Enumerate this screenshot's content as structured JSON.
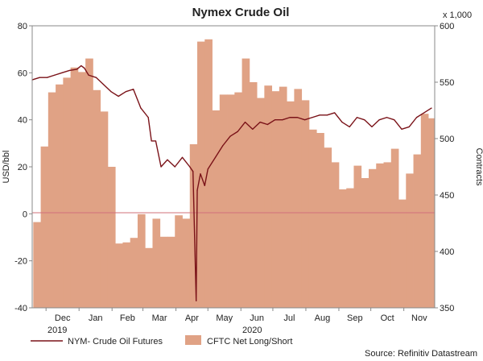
{
  "chart_data": {
    "type": "line+bar",
    "title": "Nymex Crude Oil",
    "ylabel_left": "USD/bbl",
    "ylabel_right": "Contracts",
    "right_multiplier": "x 1,000",
    "source": "Source: Refinitiv Datastream",
    "ylim_left": [
      -40,
      80
    ],
    "ylim_right": [
      350,
      600
    ],
    "yticks_left": [
      "-40",
      "-20",
      "0",
      "20",
      "40",
      "60",
      "80"
    ],
    "yticks_right": [
      "350",
      "400",
      "450",
      "500",
      "550",
      "600"
    ],
    "x_range": [
      "2019-11-18",
      "2020-11-30"
    ],
    "months": [
      {
        "label": "Dec",
        "date": "2019-12-01"
      },
      {
        "label": "Jan",
        "date": "2020-01-01"
      },
      {
        "label": "Feb",
        "date": "2020-02-01"
      },
      {
        "label": "Mar",
        "date": "2020-03-01"
      },
      {
        "label": "Apr",
        "date": "2020-04-01"
      },
      {
        "label": "May",
        "date": "2020-05-01"
      },
      {
        "label": "Jun",
        "date": "2020-06-01"
      },
      {
        "label": "Jul",
        "date": "2020-07-01"
      },
      {
        "label": "Aug",
        "date": "2020-08-01"
      },
      {
        "label": "Sep",
        "date": "2020-09-01"
      },
      {
        "label": "Oct",
        "date": "2020-10-01"
      },
      {
        "label": "Nov",
        "date": "2020-11-01"
      }
    ],
    "year_labels": [
      {
        "label": "2019",
        "date": "2019-12-01"
      },
      {
        "label": "2020",
        "date": "2020-06-01"
      }
    ],
    "series": [
      {
        "name": "CFTC Net Long/Short",
        "axis": "right",
        "kind": "bar-step",
        "color": "#e0a285",
        "points": [
          [
            "2019-11-19",
            426
          ],
          [
            "2019-11-26",
            493
          ],
          [
            "2019-12-03",
            541
          ],
          [
            "2019-12-10",
            548
          ],
          [
            "2019-12-17",
            554
          ],
          [
            "2019-12-24",
            563
          ],
          [
            "2019-12-31",
            559
          ],
          [
            "2020-01-07",
            571
          ],
          [
            "2020-01-14",
            543
          ],
          [
            "2020-01-21",
            524
          ],
          [
            "2020-01-28",
            475
          ],
          [
            "2020-02-04",
            407
          ],
          [
            "2020-02-11",
            408
          ],
          [
            "2020-02-18",
            412
          ],
          [
            "2020-02-25",
            433
          ],
          [
            "2020-03-03",
            403
          ],
          [
            "2020-03-10",
            429
          ],
          [
            "2020-03-17",
            413
          ],
          [
            "2020-03-24",
            413
          ],
          [
            "2020-03-31",
            432
          ],
          [
            "2020-04-07",
            429
          ],
          [
            "2020-04-14",
            495
          ],
          [
            "2020-04-21",
            586
          ],
          [
            "2020-04-28",
            588
          ],
          [
            "2020-05-05",
            525
          ],
          [
            "2020-05-12",
            539
          ],
          [
            "2020-05-19",
            539
          ],
          [
            "2020-05-26",
            541
          ],
          [
            "2020-06-02",
            571
          ],
          [
            "2020-06-09",
            550
          ],
          [
            "2020-06-16",
            536
          ],
          [
            "2020-06-23",
            547
          ],
          [
            "2020-06-30",
            542
          ],
          [
            "2020-07-07",
            546
          ],
          [
            "2020-07-14",
            533
          ],
          [
            "2020-07-21",
            544
          ],
          [
            "2020-07-28",
            534
          ],
          [
            "2020-08-04",
            508
          ],
          [
            "2020-08-11",
            505
          ],
          [
            "2020-08-18",
            492
          ],
          [
            "2020-08-25",
            479
          ],
          [
            "2020-09-01",
            455
          ],
          [
            "2020-09-08",
            456
          ],
          [
            "2020-09-15",
            476
          ],
          [
            "2020-09-22",
            465
          ],
          [
            "2020-09-29",
            473
          ],
          [
            "2020-10-06",
            478
          ],
          [
            "2020-10-13",
            479
          ],
          [
            "2020-10-20",
            491
          ],
          [
            "2020-10-27",
            446
          ],
          [
            "2020-11-03",
            469
          ],
          [
            "2020-11-10",
            486
          ],
          [
            "2020-11-17",
            522
          ],
          [
            "2020-11-24",
            518
          ]
        ]
      },
      {
        "name": "NYM- Crude Oil Futures",
        "axis": "left",
        "kind": "line",
        "color": "#7a1218",
        "points": [
          [
            "2019-11-18",
            57
          ],
          [
            "2019-11-25",
            58
          ],
          [
            "2019-12-02",
            58
          ],
          [
            "2019-12-09",
            59
          ],
          [
            "2019-12-16",
            60
          ],
          [
            "2019-12-23",
            61
          ],
          [
            "2019-12-30",
            61.5
          ],
          [
            "2020-01-03",
            63
          ],
          [
            "2020-01-06",
            62
          ],
          [
            "2020-01-10",
            59
          ],
          [
            "2020-01-17",
            58
          ],
          [
            "2020-01-24",
            55
          ],
          [
            "2020-01-31",
            52
          ],
          [
            "2020-02-07",
            50
          ],
          [
            "2020-02-14",
            52
          ],
          [
            "2020-02-21",
            53
          ],
          [
            "2020-02-28",
            45
          ],
          [
            "2020-03-06",
            41
          ],
          [
            "2020-03-09",
            31
          ],
          [
            "2020-03-13",
            31
          ],
          [
            "2020-03-18",
            20
          ],
          [
            "2020-03-24",
            23
          ],
          [
            "2020-03-31",
            20
          ],
          [
            "2020-04-07",
            24
          ],
          [
            "2020-04-14",
            20
          ],
          [
            "2020-04-17",
            18
          ],
          [
            "2020-04-20",
            -37
          ],
          [
            "2020-04-21",
            10
          ],
          [
            "2020-04-24",
            17
          ],
          [
            "2020-04-28",
            12
          ],
          [
            "2020-05-01",
            19
          ],
          [
            "2020-05-08",
            24
          ],
          [
            "2020-05-15",
            29
          ],
          [
            "2020-05-22",
            33
          ],
          [
            "2020-05-29",
            35
          ],
          [
            "2020-06-05",
            39
          ],
          [
            "2020-06-12",
            36
          ],
          [
            "2020-06-19",
            39
          ],
          [
            "2020-06-26",
            38
          ],
          [
            "2020-07-03",
            40
          ],
          [
            "2020-07-10",
            40
          ],
          [
            "2020-07-17",
            41
          ],
          [
            "2020-07-24",
            41
          ],
          [
            "2020-07-31",
            40
          ],
          [
            "2020-08-07",
            41
          ],
          [
            "2020-08-14",
            42
          ],
          [
            "2020-08-21",
            42
          ],
          [
            "2020-08-28",
            43
          ],
          [
            "2020-09-04",
            39
          ],
          [
            "2020-09-11",
            37
          ],
          [
            "2020-09-18",
            41
          ],
          [
            "2020-09-25",
            40
          ],
          [
            "2020-10-02",
            37
          ],
          [
            "2020-10-09",
            40
          ],
          [
            "2020-10-16",
            41
          ],
          [
            "2020-10-23",
            40
          ],
          [
            "2020-10-30",
            36
          ],
          [
            "2020-11-06",
            37
          ],
          [
            "2020-11-13",
            41
          ],
          [
            "2020-11-20",
            43
          ],
          [
            "2020-11-27",
            45
          ]
        ]
      }
    ]
  }
}
